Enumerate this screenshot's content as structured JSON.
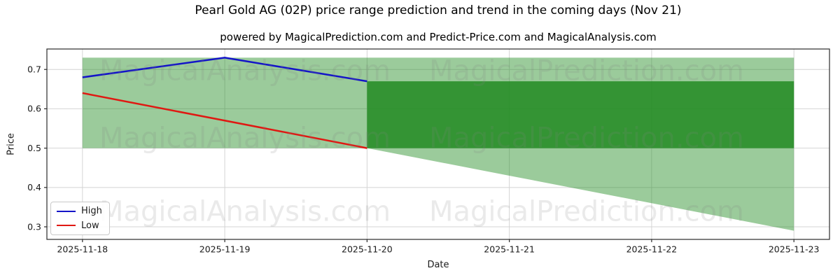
{
  "chart_data": {
    "type": "line",
    "title": "Pearl Gold AG (02P) price range prediction and trend in the coming days (Nov 21)",
    "subtitle": "powered by MagicalPrediction.com and Predict-Price.com and MagicalAnalysis.com",
    "xlabel": "Date",
    "ylabel": "Price",
    "x": [
      "2025-11-18",
      "2025-11-19",
      "2025-11-20",
      "2025-11-21",
      "2025-11-22",
      "2025-11-23"
    ],
    "y_ticks": [
      0.3,
      0.4,
      0.5,
      0.6,
      0.7
    ],
    "ylim": [
      0.268,
      0.752
    ],
    "grid": true,
    "legend_position": "lower left",
    "series": [
      {
        "name": "High",
        "color": "#1414c8",
        "x": [
          "2025-11-18",
          "2025-11-19",
          "2025-11-20"
        ],
        "values": [
          0.68,
          0.73,
          0.67
        ]
      },
      {
        "name": "Low",
        "color": "#e01812",
        "x": [
          "2025-11-18",
          "2025-11-19",
          "2025-11-20"
        ],
        "values": [
          0.64,
          0.57,
          0.5
        ]
      }
    ],
    "bands": [
      {
        "name": "overall-range",
        "color": "rgba(34,139,34,0.45)",
        "x": [
          "2025-11-18",
          "2025-11-19",
          "2025-11-20",
          "2025-11-21",
          "2025-11-22",
          "2025-11-23"
        ],
        "upper": [
          0.73,
          0.73,
          0.73,
          0.73,
          0.73,
          0.73
        ],
        "lower": [
          0.5,
          0.5,
          0.5,
          0.43,
          0.36,
          0.29
        ]
      },
      {
        "name": "prediction-range",
        "color": "rgba(34,139,34,0.85)",
        "x": [
          "2025-11-20",
          "2025-11-21",
          "2025-11-22",
          "2025-11-23"
        ],
        "upper": [
          0.67,
          0.67,
          0.67,
          0.67
        ],
        "lower": [
          0.5,
          0.5,
          0.5,
          0.5
        ]
      }
    ],
    "watermarks": [
      "MagicalAnalysis.com",
      "MagicalPrediction.com"
    ]
  }
}
